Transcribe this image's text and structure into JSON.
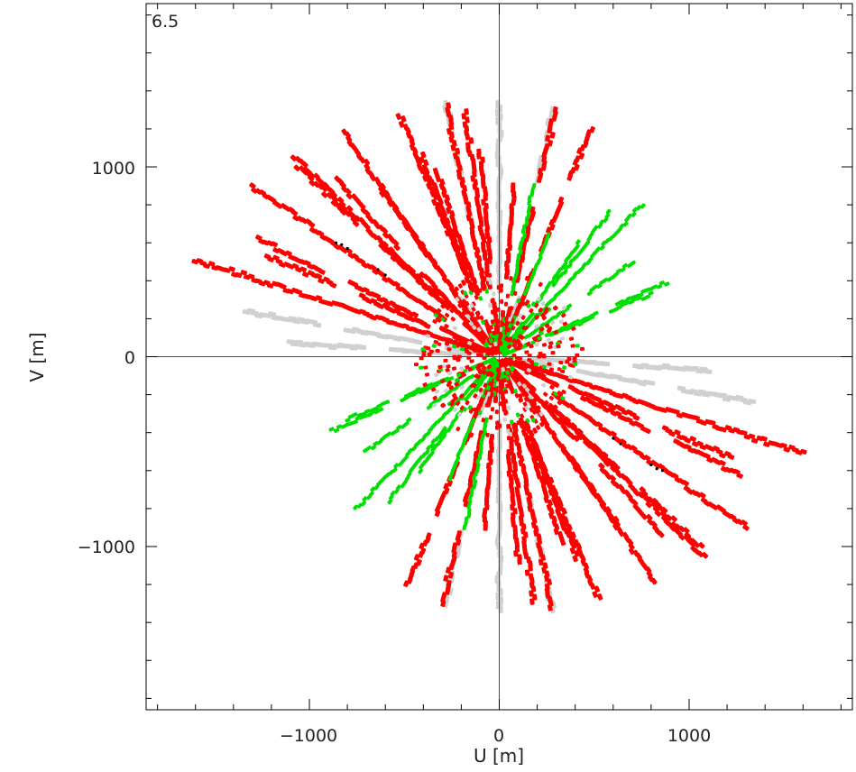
{
  "chart_data": {
    "type": "scatter",
    "title": "",
    "corner_label": "6.5",
    "xlabel": "U [m]",
    "ylabel": "V [m]",
    "xlim": [
      -1860,
      1860
    ],
    "ylim": [
      -1860,
      1860
    ],
    "x_ticks": [
      -1000,
      0,
      1000
    ],
    "y_ticks": [
      1000,
      0,
      -1000
    ],
    "x_tick_labels": [
      "−1000",
      "0",
      "1000"
    ],
    "y_tick_labels": [
      "1000",
      "0",
      "−1000"
    ],
    "zero_lines": true,
    "grid": false,
    "colors": {
      "red_tracks": "#ff0000",
      "green_tracks": "#00e000",
      "gray_tracks": "#d0d0d0",
      "black_points": "#000000",
      "zero_line": "#ff0000",
      "frame": "#000000"
    },
    "red_tracks": [
      [
        -1600,
        510,
        0.32,
        6,
        1600
      ],
      [
        -1300,
        900,
        0.55,
        6,
        1250
      ],
      [
        -1080,
        1050,
        0.7,
        6,
        1150
      ],
      [
        -820,
        1180,
        0.85,
        6,
        1050
      ],
      [
        -520,
        1270,
        1.05,
        6,
        1000
      ],
      [
        -280,
        1320,
        1.25,
        6,
        1000
      ],
      [
        -180,
        1290,
        1.35,
        6,
        950
      ],
      [
        300,
        1300,
        1.8,
        6,
        400
      ],
      [
        480,
        1200,
        1.9,
        4,
        300
      ],
      [
        -1270,
        620,
        0.45,
        4,
        400
      ],
      [
        -1220,
        530,
        0.45,
        4,
        400
      ],
      [
        -860,
        930,
        0.7,
        4,
        500
      ],
      [
        -620,
        880,
        0.8,
        5,
        500
      ],
      [
        -410,
        1060,
        1.0,
        6,
        700
      ],
      [
        -330,
        980,
        1.1,
        6,
        700
      ],
      [
        -100,
        1080,
        1.3,
        5,
        600
      ],
      [
        80,
        900,
        1.55,
        5,
        500
      ],
      [
        -1060,
        1000,
        0.65,
        4,
        450
      ]
    ],
    "green_tracks": [
      [
        750,
        800,
        2.3,
        6,
        1050
      ],
      [
        180,
        900,
        1.75,
        5,
        600
      ],
      [
        580,
        760,
        2.2,
        4,
        500
      ],
      [
        420,
        600,
        2.1,
        4,
        400
      ],
      [
        880,
        390,
        2.6,
        4,
        300
      ],
      [
        700,
        500,
        2.5,
        4,
        300
      ],
      [
        260,
        640,
        2.0,
        4,
        350
      ],
      [
        800,
        330,
        2.7,
        4,
        250
      ]
    ],
    "gray_tracks": [
      [
        -1330,
        240,
        0.15,
        4,
        400
      ],
      [
        -1100,
        70,
        0.08,
        4,
        400
      ],
      [
        -280,
        1330,
        1.33,
        3,
        180
      ],
      [
        0,
        1330,
        1.5,
        6,
        1000
      ],
      [
        280,
        1300,
        1.75,
        4,
        400
      ],
      [
        -200,
        300,
        1.4,
        8,
        300
      ],
      [
        100,
        300,
        1.7,
        8,
        300
      ]
    ],
    "black_points": [
      [
        -860,
        600
      ],
      [
        -830,
        590
      ],
      [
        -800,
        570
      ],
      [
        -640,
        460
      ],
      [
        -600,
        430
      ],
      [
        860,
        -600
      ],
      [
        830,
        -590
      ],
      [
        800,
        -570
      ],
      [
        640,
        -460
      ],
      [
        600,
        -430
      ]
    ]
  }
}
